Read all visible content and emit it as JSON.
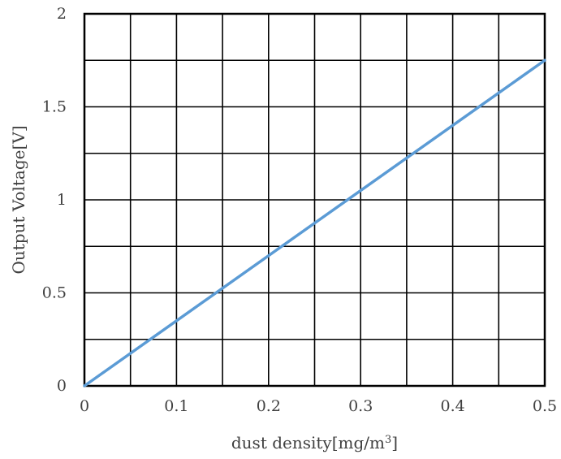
{
  "chart_data": {
    "type": "line",
    "xlabel": "dust density[mg/m",
    "xlabel_sup": "3",
    "xlabel_end": "]",
    "ylabel": "Output Voltage[V]",
    "xlim": [
      0,
      0.5
    ],
    "ylim": [
      0,
      2
    ],
    "x_ticks": [
      "0",
      "0.1",
      "0.2",
      "0.3",
      "0.4",
      "0.5"
    ],
    "y_ticks": [
      "0",
      "0.5",
      "1",
      "1.5",
      "2"
    ],
    "x_gridlines": [
      0,
      0.05,
      0.1,
      0.15,
      0.2,
      0.25,
      0.3,
      0.35,
      0.4,
      0.45,
      0.5
    ],
    "y_gridlines": [
      0,
      0.25,
      0.5,
      0.75,
      1,
      1.25,
      1.5,
      1.75,
      2
    ],
    "grid": true,
    "legend": "none",
    "series": [
      {
        "x": [
          0,
          0.5
        ],
        "y": [
          0,
          1.75
        ],
        "color": "#5b9bd5"
      }
    ]
  }
}
